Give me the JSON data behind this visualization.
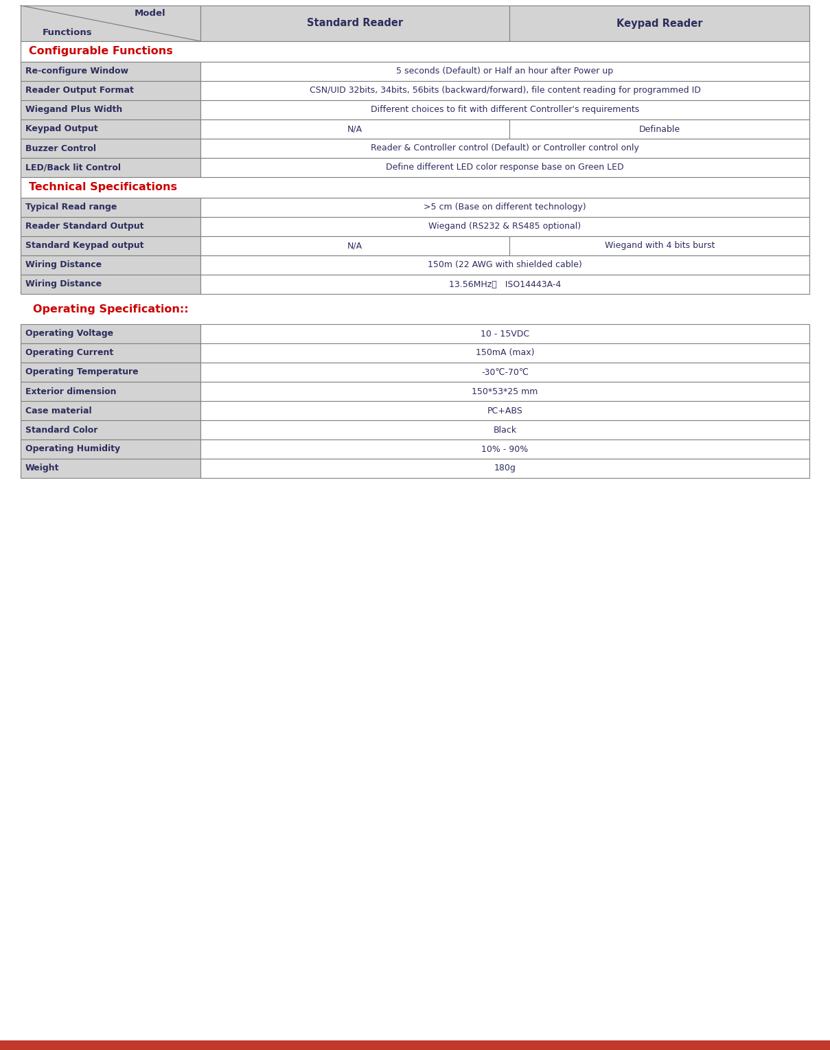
{
  "bg_color": "#ffffff",
  "border_color": "#808080",
  "header_bg": "#d3d3d3",
  "label_col_bg": "#d3d3d3",
  "text_color": "#2d2d5e",
  "red_color": "#cc0000",
  "section_header_bg": "#ffffff",
  "header": {
    "col2": "Standard Reader",
    "col3": "Keypad Reader",
    "model_text": "Model",
    "functions_text": "Functions"
  },
  "section1_title": "Configurable Functions",
  "section2_title": "Technical Specifications",
  "section3_title": "Operating Specification::",
  "configurable_rows": [
    {
      "label": "Re-configure Window",
      "col2": "5 seconds (Default) or Half an hour after Power up",
      "col3": null,
      "span": true
    },
    {
      "label": "Reader Output Format",
      "col2": "CSN/UID 32bits, 34bits, 56bits (backward/forward), file content reading for programmed ID",
      "col3": null,
      "span": true
    },
    {
      "label": "Wiegand Plus Width",
      "col2": "Different choices to fit with different Controller's requirements",
      "col3": null,
      "span": true
    },
    {
      "label": "Keypad Output",
      "col2": "N/A",
      "col3": "Definable",
      "span": false
    },
    {
      "label": "Buzzer Control",
      "col2": "Reader & Controller control (Default) or Controller control only",
      "col3": null,
      "span": true
    },
    {
      "label": "LED/Back lit Control",
      "col2": "Define different LED color response base on Green LED",
      "col3": null,
      "span": true
    }
  ],
  "technical_rows": [
    {
      "label": "Typical Read range",
      "col2": ">5 cm (Base on different technology)",
      "col3": null,
      "span": true
    },
    {
      "label": "Reader Standard Output",
      "col2": "Wiegand (RS232 & RS485 optional)",
      "col3": null,
      "span": true
    },
    {
      "label": "Standard Keypad output",
      "col2": "N/A",
      "col3": "Wiegand with 4 bits burst",
      "span": false
    },
    {
      "label": "Wiring Distance",
      "col2": "150m (22 AWG with shielded cable)",
      "col3": null,
      "span": true
    },
    {
      "label": "Wiring Distance",
      "col2": "13.56MHz；   ISO14443A-4",
      "col3": null,
      "span": true
    }
  ],
  "operating_rows": [
    {
      "label": "Operating Voltage",
      "col2": "10 - 15VDC"
    },
    {
      "label": "Operating Current",
      "col2": "150mA (max)"
    },
    {
      "label": "Operating Temperature",
      "col2": "-30℃-70℃"
    },
    {
      "label": "Exterior dimension",
      "col2": "150*53*25 mm"
    },
    {
      "label": "Case material",
      "col2": "PC+ABS"
    },
    {
      "label": "Standard Color",
      "col2": "Black"
    },
    {
      "label": "Operating Humidity",
      "col2": "10% - 90%"
    },
    {
      "label": "Weight",
      "col2": "180g"
    }
  ],
  "bottom_bar_color": "#c0392b"
}
